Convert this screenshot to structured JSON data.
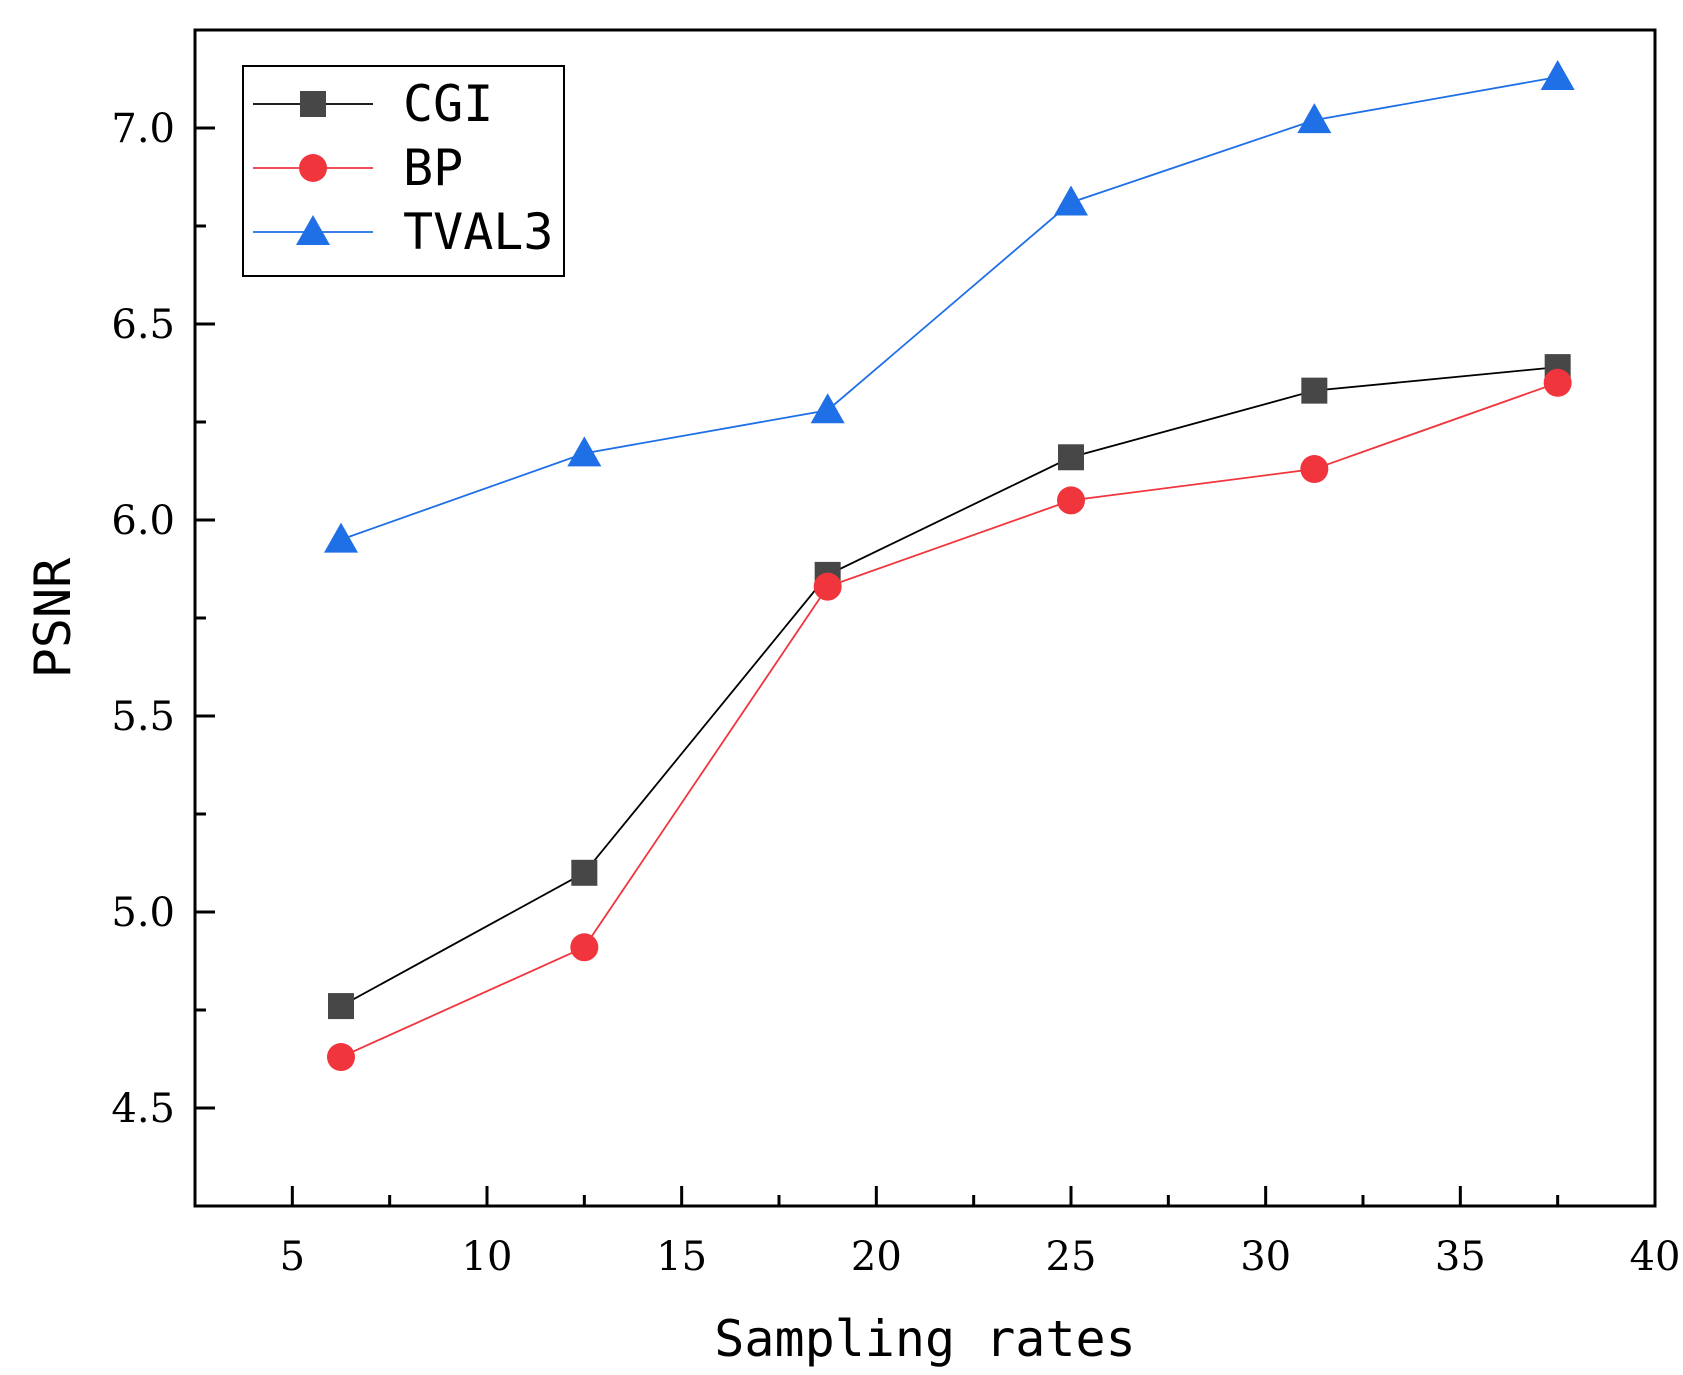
{
  "chart_data": {
    "type": "line",
    "title": "",
    "xlabel": "Sampling rates",
    "ylabel": "PSNR",
    "xlim": [
      2.5,
      40
    ],
    "ylim": [
      4.25,
      7.25
    ],
    "x_ticks_major": [
      5,
      10,
      15,
      20,
      25,
      30,
      35,
      40
    ],
    "x_tick_labels": [
      "5",
      "10",
      "15",
      "20",
      "25",
      "30",
      "35",
      "40"
    ],
    "x_ticks_minor": [
      7.5,
      12.5,
      17.5,
      22.5,
      27.5,
      32.5,
      37.5
    ],
    "y_ticks_major": [
      4.5,
      5.0,
      5.5,
      6.0,
      6.5,
      7.0
    ],
    "y_tick_labels": [
      "4.5",
      "5.0",
      "5.5",
      "6.0",
      "6.5",
      "7.0"
    ],
    "y_ticks_minor": [
      4.75,
      5.25,
      5.75,
      6.25,
      6.75
    ],
    "grid": false,
    "legend_position": "top-left",
    "x": [
      6.25,
      12.5,
      18.75,
      25,
      31.25,
      37.5
    ],
    "series": [
      {
        "name": "CGI",
        "marker": "square",
        "color": "#474747",
        "line_color": "#000000",
        "values": [
          4.76,
          5.1,
          5.86,
          6.16,
          6.33,
          6.39
        ]
      },
      {
        "name": "BP",
        "marker": "circle",
        "color": "#f0353d",
        "line_color": "#f0353d",
        "values": [
          4.63,
          4.91,
          5.83,
          6.05,
          6.13,
          6.35
        ]
      },
      {
        "name": "TVAL3",
        "marker": "triangle",
        "color": "#1f6fe6",
        "line_color": "#1f6fe6",
        "values": [
          5.95,
          6.17,
          6.28,
          6.81,
          7.02,
          7.13
        ]
      }
    ]
  }
}
